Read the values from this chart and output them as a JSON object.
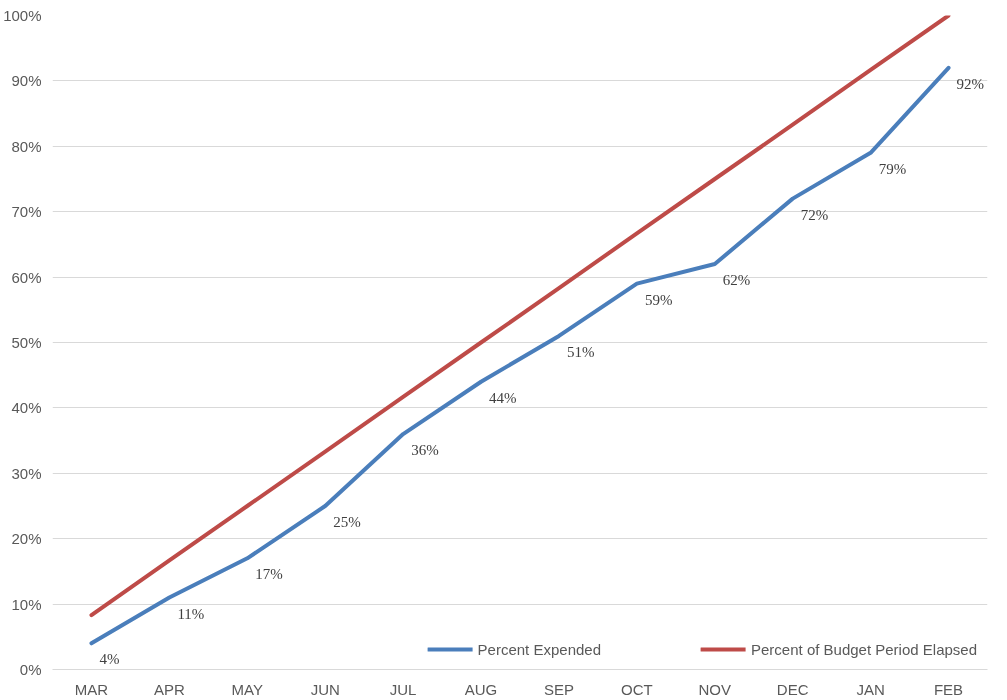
{
  "chart_data": {
    "type": "line",
    "categories": [
      "MAR",
      "APR",
      "MAY",
      "JUN",
      "JUL",
      "AUG",
      "SEP",
      "OCT",
      "NOV",
      "DEC",
      "JAN",
      "FEB"
    ],
    "series": [
      {
        "name": "Percent Expended",
        "color": "#4a7ebb",
        "values": [
          4,
          11,
          17,
          25,
          36,
          44,
          51,
          59,
          62,
          72,
          79,
          92
        ],
        "value_labels": [
          "4%",
          "11%",
          "17%",
          "25%",
          "36%",
          "44%",
          "51%",
          "59%",
          "62%",
          "72%",
          "79%",
          "92%"
        ]
      },
      {
        "name": "Percent of Budget Period Elapsed",
        "color": "#be4b48",
        "values": [
          8.3,
          16.7,
          25,
          33.3,
          41.7,
          50,
          58.3,
          66.7,
          75,
          83.3,
          91.7,
          100
        ]
      }
    ],
    "ylim": [
      0,
      100
    ],
    "yticks": [
      {
        "value": 0,
        "label": "0%"
      },
      {
        "value": 10,
        "label": "10%"
      },
      {
        "value": 20,
        "label": "20%"
      },
      {
        "value": 30,
        "label": "30%"
      },
      {
        "value": 40,
        "label": "40%"
      },
      {
        "value": 50,
        "label": "50%"
      },
      {
        "value": 60,
        "label": "60%"
      },
      {
        "value": 70,
        "label": "70%"
      },
      {
        "value": 80,
        "label": "80%"
      },
      {
        "value": 90,
        "label": "90%"
      },
      {
        "value": 100,
        "label": "100%"
      }
    ],
    "grid": "y",
    "legend": "bottom right",
    "marker": "none",
    "line_style": "solid"
  }
}
